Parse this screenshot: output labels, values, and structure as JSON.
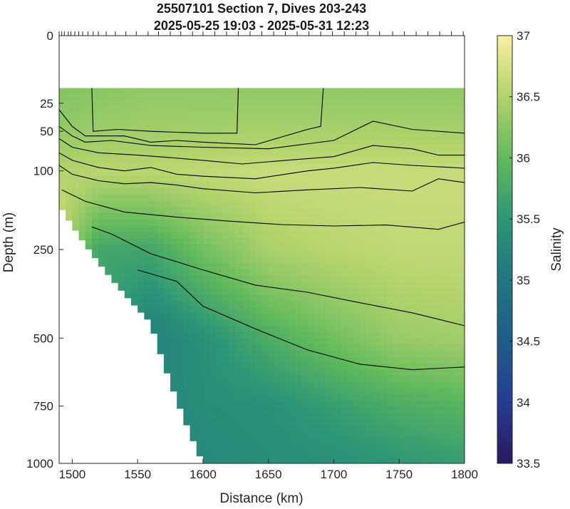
{
  "title_line1": "25507101 Section 7, Dives 203-243",
  "title_line2": "2025-05-25 19:03 - 2025-05-31 12:23",
  "chart_data": {
    "type": "heatmap",
    "title": "25507101 Section 7, Dives 203-243",
    "subtitle": "2025-05-25 19:03 - 2025-05-31 12:23",
    "xlabel": "Distance (km)",
    "ylabel": "Depth (m)",
    "colorbar_label": "Salinity",
    "x_ticks": [
      1500,
      1550,
      1600,
      1650,
      1700,
      1750,
      1800
    ],
    "y_ticks": [
      0,
      25,
      50,
      100,
      250,
      500,
      750,
      1000
    ],
    "colorbar_ticks": [
      33.5,
      34,
      34.5,
      35,
      35.5,
      36,
      36.5,
      37
    ],
    "xlim": [
      1490,
      1800
    ],
    "ylim": [
      1000,
      0
    ],
    "clim": [
      33.5,
      37
    ],
    "y_scale": "square-root",
    "colormap": "haline (dark blue - teal - green - pale yellow)",
    "contour_lines_color": "#000000",
    "dive_positions_km": [
      1490,
      1492,
      1494,
      1497,
      1499,
      1502,
      1505,
      1508,
      1512,
      1516,
      1520,
      1526,
      1533,
      1541,
      1549,
      1558,
      1566,
      1575,
      1583,
      1592,
      1600,
      1609,
      1618,
      1627,
      1636,
      1645,
      1654,
      1663,
      1672,
      1681,
      1690,
      1699,
      1708,
      1717,
      1726,
      1735,
      1745,
      1754,
      1763,
      1772,
      1781,
      1790,
      1799
    ],
    "profiles": [
      {
        "x": 1490,
        "salinity": [
          [
            15,
            36.2
          ],
          [
            100,
            36.5
          ],
          [
            150,
            36.6
          ]
        ],
        "max_depth": 155
      },
      {
        "x": 1520,
        "salinity": [
          [
            15,
            36.25
          ],
          [
            100,
            36.55
          ],
          [
            250,
            35.7
          ]
        ],
        "max_depth": 280
      },
      {
        "x": 1560,
        "salinity": [
          [
            15,
            36.3
          ],
          [
            100,
            36.55
          ],
          [
            250,
            35.7
          ],
          [
            450,
            35.2
          ]
        ],
        "max_depth": 450
      },
      {
        "x": 1600,
        "salinity": [
          [
            15,
            36.3
          ],
          [
            100,
            36.6
          ],
          [
            250,
            36.1
          ],
          [
            500,
            35.4
          ],
          [
            1000,
            35.3
          ]
        ],
        "max_depth": 1000
      },
      {
        "x": 1650,
        "salinity": [
          [
            15,
            36.3
          ],
          [
            100,
            36.65
          ],
          [
            250,
            36.45
          ],
          [
            500,
            35.8
          ],
          [
            750,
            35.4
          ],
          [
            1000,
            35.35
          ]
        ],
        "max_depth": 1000
      },
      {
        "x": 1700,
        "salinity": [
          [
            15,
            36.3
          ],
          [
            100,
            36.65
          ],
          [
            250,
            36.55
          ],
          [
            500,
            36.1
          ],
          [
            750,
            35.6
          ],
          [
            1000,
            35.4
          ]
        ],
        "max_depth": 1000
      },
      {
        "x": 1750,
        "salinity": [
          [
            15,
            36.3
          ],
          [
            100,
            36.65
          ],
          [
            250,
            36.6
          ],
          [
            500,
            36.35
          ],
          [
            750,
            35.8
          ],
          [
            1000,
            35.5
          ]
        ],
        "max_depth": 1000
      },
      {
        "x": 1800,
        "salinity": [
          [
            15,
            36.3
          ],
          [
            100,
            36.65
          ],
          [
            250,
            36.6
          ],
          [
            500,
            36.4
          ],
          [
            750,
            35.9
          ],
          [
            1000,
            35.6
          ]
        ],
        "max_depth": 1000
      }
    ],
    "contour_lines": [
      {
        "points": [
          [
            1515,
            15
          ],
          [
            1516,
            50
          ],
          [
            1535,
            48
          ],
          [
            1560,
            50
          ],
          [
            1600,
            52
          ],
          [
            1626,
            52
          ],
          [
            1627,
            15
          ]
        ]
      },
      {
        "points": [
          [
            1490,
            30
          ],
          [
            1500,
            45
          ],
          [
            1510,
            55
          ],
          [
            1540,
            55
          ],
          [
            1560,
            62
          ],
          [
            1580,
            60
          ],
          [
            1600,
            62
          ],
          [
            1640,
            65
          ],
          [
            1680,
            48
          ],
          [
            1690,
            45
          ],
          [
            1692,
            15
          ]
        ]
      },
      {
        "points": [
          [
            1490,
            45
          ],
          [
            1500,
            55
          ],
          [
            1510,
            62
          ],
          [
            1530,
            60
          ],
          [
            1560,
            66
          ],
          [
            1600,
            68
          ],
          [
            1650,
            70
          ],
          [
            1700,
            60
          ],
          [
            1730,
            40
          ],
          [
            1760,
            48
          ],
          [
            1800,
            52
          ]
        ]
      },
      {
        "points": [
          [
            1490,
            58
          ],
          [
            1500,
            68
          ],
          [
            1520,
            75
          ],
          [
            1550,
            78
          ],
          [
            1580,
            82
          ],
          [
            1600,
            85
          ],
          [
            1630,
            90
          ],
          [
            1670,
            84
          ],
          [
            1700,
            80
          ],
          [
            1730,
            66
          ],
          [
            1760,
            70
          ],
          [
            1780,
            78
          ],
          [
            1800,
            78
          ]
        ]
      },
      {
        "points": [
          [
            1490,
            75
          ],
          [
            1500,
            85
          ],
          [
            1520,
            95
          ],
          [
            1540,
            100
          ],
          [
            1560,
            95
          ],
          [
            1580,
            105
          ],
          [
            1600,
            108
          ],
          [
            1640,
            112
          ],
          [
            1680,
            100
          ],
          [
            1700,
            96
          ],
          [
            1730,
            88
          ],
          [
            1760,
            92
          ],
          [
            1800,
            96
          ]
        ]
      },
      {
        "points": [
          [
            1490,
            92
          ],
          [
            1500,
            105
          ],
          [
            1520,
            115
          ],
          [
            1540,
            120
          ],
          [
            1560,
            118
          ],
          [
            1580,
            122
          ],
          [
            1600,
            128
          ],
          [
            1640,
            135
          ],
          [
            1680,
            130
          ],
          [
            1720,
            126
          ],
          [
            1760,
            132
          ],
          [
            1780,
            112
          ],
          [
            1800,
            118
          ]
        ]
      },
      {
        "points": [
          [
            1492,
            130
          ],
          [
            1510,
            150
          ],
          [
            1540,
            170
          ],
          [
            1580,
            180
          ],
          [
            1620,
            188
          ],
          [
            1660,
            195
          ],
          [
            1700,
            198
          ],
          [
            1740,
            196
          ],
          [
            1780,
            205
          ],
          [
            1800,
            190
          ]
        ]
      },
      {
        "points": [
          [
            1515,
            200
          ],
          [
            1530,
            215
          ],
          [
            1560,
            260
          ],
          [
            1600,
            300
          ],
          [
            1640,
            340
          ],
          [
            1680,
            360
          ],
          [
            1720,
            390
          ],
          [
            1760,
            420
          ],
          [
            1800,
            460
          ]
        ]
      },
      {
        "points": [
          [
            1550,
            300
          ],
          [
            1580,
            330
          ],
          [
            1600,
            400
          ],
          [
            1640,
            470
          ],
          [
            1680,
            540
          ],
          [
            1720,
            590
          ],
          [
            1760,
            610
          ],
          [
            1800,
            600
          ]
        ]
      }
    ]
  }
}
